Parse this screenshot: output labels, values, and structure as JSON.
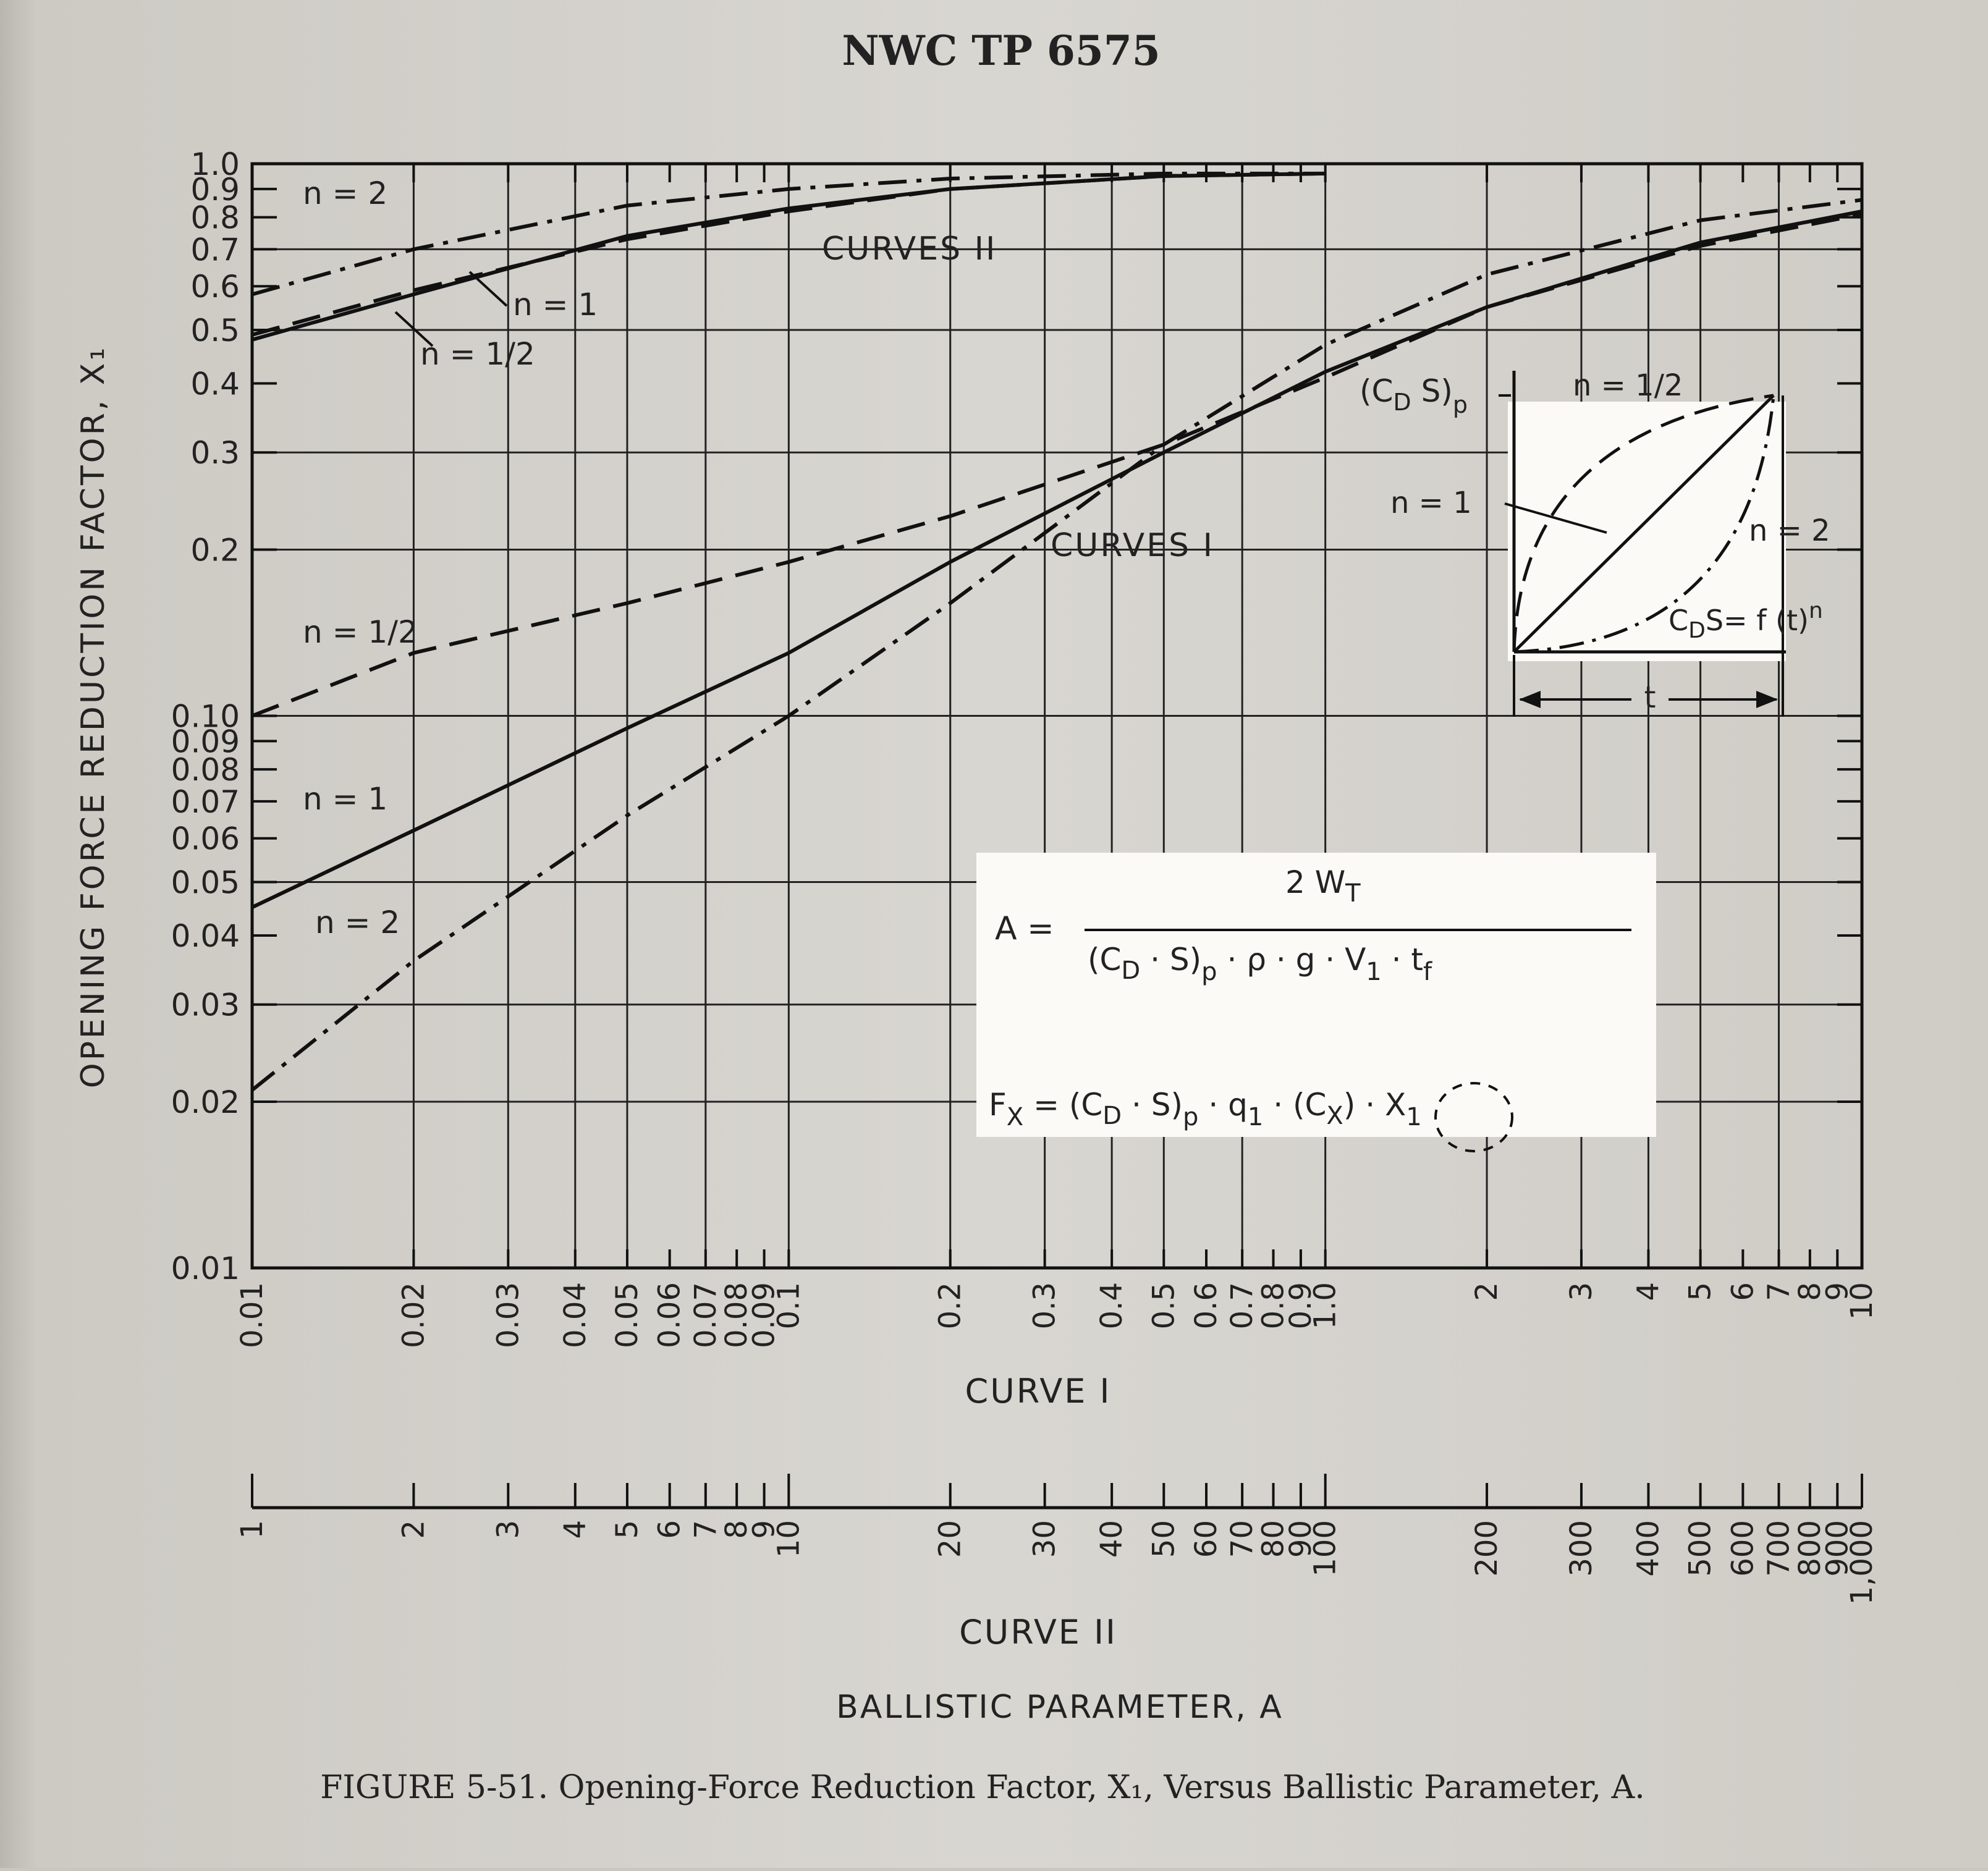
{
  "header": "NWC TP 6575",
  "caption": "FIGURE 5-51. Opening-Force Reduction Factor, X₁, Versus Ballistic Parameter, A.",
  "inset": {
    "n_half": "n = 1/2",
    "n_one": "n = 1",
    "n_two": "n = 2",
    "t_label": "t"
  },
  "chart_data": {
    "type": "line",
    "x_scale": "log",
    "y_scale": "log",
    "ylabel": "OPENING FORCE REDUCTION FACTOR, X₁",
    "xlabel": "BALLISTIC PARAMETER, A",
    "xlabel_curve_i": "CURVE I",
    "xlabel_curve_ii": "CURVE II",
    "xlim_curve_i": [
      0.01,
      10
    ],
    "xlim_curve_ii": [
      1,
      1000
    ],
    "ylim": [
      0.01,
      1.0
    ],
    "grid": true,
    "y_ticks": [
      0.01,
      0.02,
      0.03,
      0.04,
      0.05,
      0.06,
      0.07,
      0.08,
      0.09,
      0.1,
      0.2,
      0.3,
      0.4,
      0.5,
      0.6,
      0.7,
      0.8,
      0.9,
      1.0
    ],
    "y_tick_labels": [
      "0.01",
      "0.02",
      "0.03",
      "0.04",
      "0.05",
      "0.06",
      "0.07",
      "0.08",
      "0.09",
      "0.10",
      "0.2",
      "0.3",
      "0.4",
      "0.5",
      "0.6",
      "0.7",
      "0.8",
      "0.9",
      "1.0"
    ],
    "x_ticks_curve_i": [
      0.01,
      0.02,
      0.03,
      0.04,
      0.05,
      0.06,
      0.07,
      0.08,
      0.09,
      0.1,
      0.2,
      0.3,
      0.4,
      0.5,
      0.6,
      0.7,
      0.8,
      0.9,
      1.0,
      2,
      3,
      4,
      5,
      6,
      7,
      8,
      9,
      10
    ],
    "x_tick_labels_curve_i": [
      "0.01",
      "0.02",
      "0.03",
      "0.04",
      "0.05",
      "0.06",
      "0.07",
      "0.08",
      "0.09",
      "0.1",
      "0.2",
      "0.3",
      "0.4",
      "0.5",
      "0.6",
      "0.7",
      "0.8",
      "0.9",
      "1.0",
      "2",
      "3",
      "4",
      "5",
      "6",
      "7",
      "8",
      "9",
      "10"
    ],
    "x_ticks_curve_ii": [
      1,
      2,
      3,
      4,
      5,
      6,
      7,
      8,
      9,
      10,
      20,
      30,
      40,
      50,
      60,
      70,
      80,
      90,
      100,
      200,
      300,
      400,
      500,
      600,
      700,
      800,
      900,
      1000
    ],
    "x_tick_labels_curve_ii": [
      "1",
      "2",
      "3",
      "4",
      "5",
      "6",
      "7",
      "8",
      "9",
      "10",
      "20",
      "30",
      "40",
      "50",
      "60",
      "70",
      "80",
      "90",
      "100",
      "200",
      "300",
      "400",
      "500",
      "600",
      "700",
      "800",
      "900",
      "1,000"
    ],
    "annotations": [
      "CURVES I",
      "CURVES II"
    ],
    "series": [
      {
        "name": "n = 1/2",
        "group": "CURVES I",
        "style": "dash",
        "x": [
          0.01,
          0.02,
          0.05,
          0.1,
          0.2,
          0.5,
          1.0,
          2,
          5,
          10
        ],
        "y": [
          0.1,
          0.13,
          0.16,
          0.19,
          0.23,
          0.31,
          0.41,
          0.55,
          0.71,
          0.81
        ]
      },
      {
        "name": "n = 1",
        "group": "CURVES I",
        "style": "solid",
        "x": [
          0.01,
          0.02,
          0.05,
          0.1,
          0.2,
          0.5,
          1.0,
          2,
          5,
          10
        ],
        "y": [
          0.045,
          0.062,
          0.095,
          0.13,
          0.19,
          0.3,
          0.42,
          0.55,
          0.72,
          0.82
        ]
      },
      {
        "name": "n = 2",
        "group": "CURVES I",
        "style": "dash-dot",
        "x": [
          0.01,
          0.02,
          0.05,
          0.1,
          0.2,
          0.5,
          1.0,
          2,
          5,
          10
        ],
        "y": [
          0.021,
          0.036,
          0.066,
          0.1,
          0.16,
          0.31,
          0.47,
          0.63,
          0.79,
          0.86
        ]
      },
      {
        "name": "n = 1/2",
        "group": "CURVES II",
        "style": "dash",
        "x": [
          1,
          2,
          5,
          10,
          20,
          50,
          100
        ],
        "y": [
          0.49,
          0.59,
          0.73,
          0.82,
          0.9,
          0.95,
          0.96
        ]
      },
      {
        "name": "n = 1",
        "group": "CURVES II",
        "style": "solid",
        "x": [
          1,
          2,
          5,
          10,
          20,
          50,
          100
        ],
        "y": [
          0.48,
          0.58,
          0.74,
          0.83,
          0.9,
          0.95,
          0.96
        ]
      },
      {
        "name": "n = 2",
        "group": "CURVES II",
        "style": "dash-dot",
        "x": [
          1,
          2,
          5,
          10,
          20,
          50,
          100
        ],
        "y": [
          0.58,
          0.7,
          0.84,
          0.9,
          0.94,
          0.96,
          0.96
        ]
      }
    ],
    "curve_labels": [
      {
        "text": "n = 2",
        "series_index": 5
      },
      {
        "text": "n = 1",
        "series_index": 4
      },
      {
        "text": "n = 1/2",
        "series_index": 3
      },
      {
        "text": "n = 1/2",
        "series_index": 0
      },
      {
        "text": "n = 1",
        "series_index": 1
      },
      {
        "text": "n = 2",
        "series_index": 2
      }
    ]
  }
}
